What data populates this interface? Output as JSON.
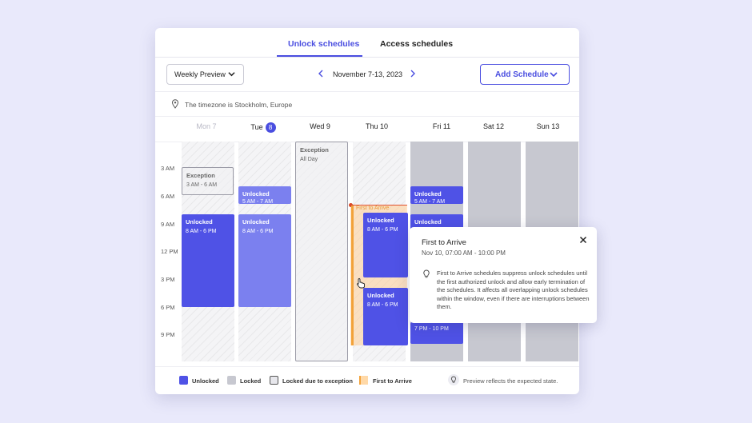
{
  "tabs": {
    "unlock": "Unlock schedules",
    "access": "Access schedules"
  },
  "toolbar": {
    "view_select": "Weekly Preview",
    "date_range": "November 7-13, 2023",
    "add_schedule": "Add Schedule"
  },
  "timezone": {
    "text": "The timezone is Stockholm, Europe"
  },
  "days": {
    "mon": "Mon 7",
    "tue": "Tue",
    "tue_badge": "8",
    "wed": "Wed 9",
    "thu": "Thu 10",
    "fri": "Fri 11",
    "sat": "Sat 12",
    "sun": "Sun 13"
  },
  "hours": [
    "3 AM",
    "6 AM",
    "9 AM",
    "12 PM",
    "3 PM",
    "6 PM",
    "9 PM"
  ],
  "events": {
    "mon_exception": {
      "title": "Exception",
      "time": "3 AM - 6 AM"
    },
    "mon_unlocked": {
      "title": "Unlocked",
      "time": "8 AM - 6 PM"
    },
    "tue_unlocked_1": {
      "title": "Unlocked",
      "time": "5 AM - 7 AM"
    },
    "tue_unlocked_2": {
      "title": "Unlocked",
      "time": "8 AM - 6 PM"
    },
    "wed_exception": {
      "title": "Exception",
      "time": "All Day"
    },
    "thu_fta_label": "First to Arrive",
    "thu_unlocked_1": {
      "title": "Unlocked",
      "time": "8 AM - 6 PM"
    },
    "thu_unlocked_2": {
      "title": "Unlocked",
      "time": "8 AM - 6 PM"
    },
    "fri_unlocked_1": {
      "title": "Unlocked",
      "time": "5 AM - 7 AM"
    },
    "fri_unlocked_2": {
      "title": "Unlocked"
    },
    "fri_unlocked_3": {
      "time": "7 PM - 10 PM"
    }
  },
  "legend": {
    "unlocked": "Unlocked",
    "locked": "Locked",
    "locked_exception": "Locked due to exception",
    "first_to_arrive": "First to Arrive",
    "note": "Preview reflects the expected state."
  },
  "popover": {
    "title": "First to Arrive",
    "subtitle": "Nov 10, 07:00 AM - 10:00 PM",
    "description": "First to Arrive schedules suppress unlock schedules until the first authorized unlock and allow early termination of the schedules. It affects all overlapping unlock schedules within the window, even if there are interruptions between them."
  },
  "colors": {
    "accent": "#4a4ee0",
    "unlocked": "#4f52e6",
    "locked": "#c7c8d0",
    "first_to_arrive": "#f2a23a"
  }
}
